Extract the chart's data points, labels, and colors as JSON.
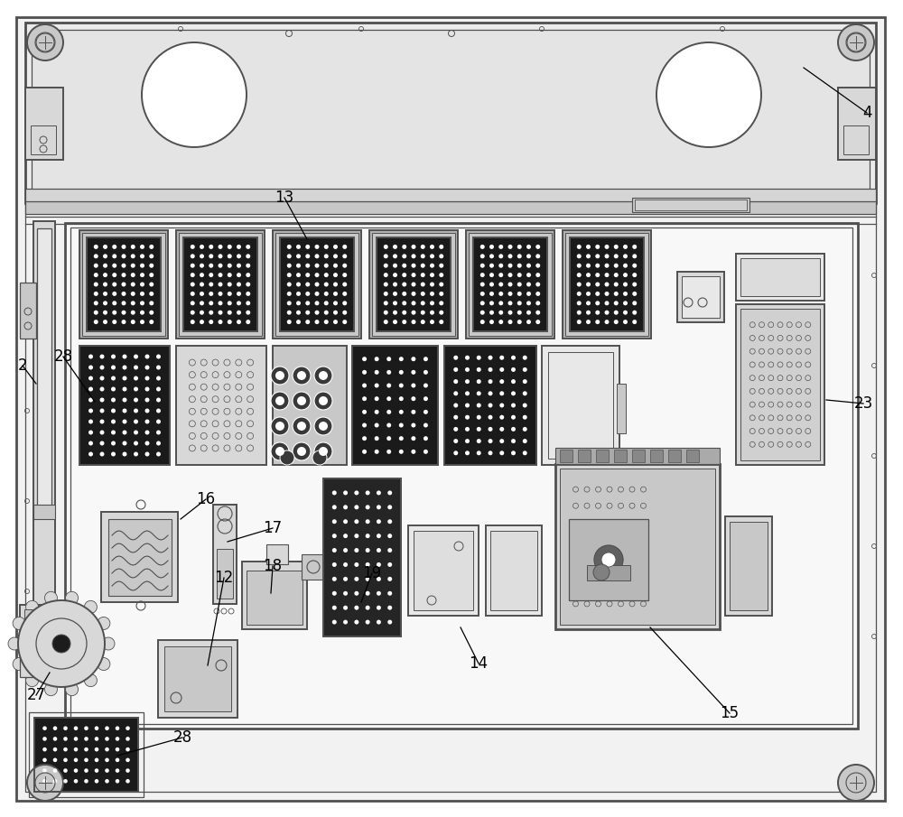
{
  "bg_color": "#ffffff",
  "lc": "#505050",
  "lc2": "#606060",
  "dark": "#1c1c1c",
  "gray1": "#c8c8c8",
  "gray2": "#d8d8d8",
  "gray3": "#e8e8e8",
  "gray4": "#b0b0b0",
  "figsize": [
    10.0,
    9.05
  ],
  "dpi": 100
}
